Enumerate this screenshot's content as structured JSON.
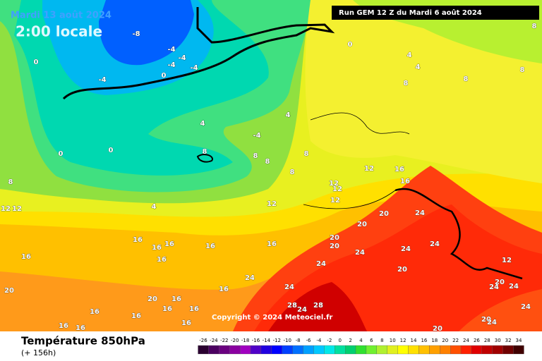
{
  "header": {
    "date": "Mardi 13 août 2024",
    "time": "2:00 locale",
    "run": "Run GEM 12 Z du Mardi 6 août 2024"
  },
  "copyright": "Copyright © 2024 Meteociel.fr",
  "footer": {
    "title": "Température 850hPa",
    "lead": "(+ 156h)"
  },
  "legend": {
    "ticks": [
      -26,
      -24,
      -22,
      -20,
      -18,
      -16,
      -14,
      -12,
      -10,
      -8,
      -6,
      -4,
      -2,
      0,
      2,
      4,
      6,
      8,
      10,
      12,
      14,
      16,
      18,
      20,
      22,
      24,
      26,
      28,
      30,
      32,
      34
    ],
    "colors": [
      "#2a0030",
      "#4b0060",
      "#6a007f",
      "#8a00a0",
      "#a000c0",
      "#5000c8",
      "#2000e0",
      "#0000ff",
      "#0040ff",
      "#0070ff",
      "#00a0ff",
      "#00c8ff",
      "#00e8e8",
      "#00e0a0",
      "#00d070",
      "#30e030",
      "#70f030",
      "#b0f030",
      "#e0f020",
      "#ffff00",
      "#ffe000",
      "#ffc000",
      "#ffa000",
      "#ff8000",
      "#ff5000",
      "#ff2000",
      "#e00000",
      "#c00000",
      "#a00000",
      "#700000",
      "#400000"
    ]
  },
  "contour_labels": [
    -8,
    -4,
    -4,
    -4,
    -4,
    -4,
    0,
    0,
    0,
    4,
    4,
    8,
    8,
    8,
    8,
    4,
    4,
    -4,
    0,
    0,
    8,
    8,
    8,
    8,
    8,
    12,
    16,
    16,
    12,
    12,
    12,
    12,
    4,
    8,
    12,
    12,
    16,
    16,
    16,
    16,
    16,
    16,
    16,
    20,
    20,
    20,
    24,
    20,
    24,
    24,
    24,
    24,
    24,
    20,
    24,
    12,
    20,
    24,
    24,
    20,
    16,
    16,
    28,
    24,
    28,
    24,
    20,
    24,
    20,
    16,
    16,
    16,
    16,
    16,
    20,
    16,
    16
  ]
}
